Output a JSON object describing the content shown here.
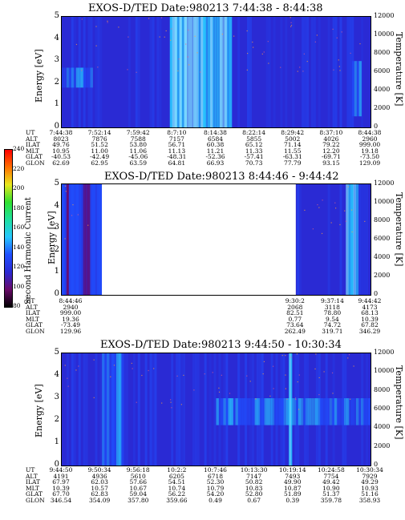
{
  "colors": {
    "background": "#2a2ad4",
    "hot": "#27c7ff",
    "mid": "#2050ff",
    "bright": "#7ad8ff"
  },
  "colorbar": {
    "label": "Second Harmonic Current",
    "ticks": [
      "80",
      "100",
      "120",
      "140",
      "160",
      "180",
      "200",
      "220",
      "240"
    ],
    "stops": [
      "#000000",
      "#6a0a6a",
      "#2a2ad4",
      "#2050ff",
      "#27c7ff",
      "#1fe0a0",
      "#30e030",
      "#e8e81e",
      "#ff7000",
      "#ff0000"
    ]
  },
  "panels": [
    {
      "title": "EXOS-D/TED   Date:980213  7:44:38 - 8:44:38",
      "ylabel": "Energy [eV]",
      "y2label": "Temperature [K]",
      "yticks": [
        "0",
        "1",
        "2",
        "3",
        "4",
        "5"
      ],
      "y2ticks": [
        "0",
        "2000",
        "4000",
        "6000",
        "8000",
        "10000",
        "12000"
      ],
      "row_labels": [
        "UT",
        "ALT",
        "ILAT",
        "MLT",
        "GLAT",
        "GLON"
      ],
      "columns": [
        [
          "7:44:38",
          "8023",
          "49.76",
          "10.95",
          "-40.53",
          "62.69"
        ],
        [
          "7:52:14",
          "7876",
          "51.52",
          "11.00",
          "-42.49",
          "62.95"
        ],
        [
          "7:59:42",
          "7588",
          "53.80",
          "11.06",
          "-45.06",
          "63.59"
        ],
        [
          "8:7:10",
          "7157",
          "56.71",
          "11.13",
          "-48.31",
          "64.81"
        ],
        [
          "8:14:38",
          "6584",
          "60.38",
          "11.21",
          "-52.36",
          "66.93"
        ],
        [
          "8:22:14",
          "5855",
          "65.12",
          "11.33",
          "-57.41",
          "70.73"
        ],
        [
          "8:29:42",
          "5002",
          "71.14",
          "11.55",
          "-63.31",
          "77.79"
        ],
        [
          "8:37:10",
          "4026",
          "79.22",
          "12.20",
          "-69.71",
          "93.15"
        ],
        [
          "8:44:38",
          "2960",
          "999.00",
          "19.18",
          "-73.50",
          "129.09"
        ]
      ],
      "data_gaps": []
    },
    {
      "title": "EXOS-D/TED   Date:980213  8:44:46 - 9:44:42",
      "ylabel": "Energy [eV]",
      "y2label": "Temperature [K]",
      "yticks": [
        "0",
        "1",
        "2",
        "3",
        "4",
        "5"
      ],
      "y2ticks": [
        "0",
        "2000",
        "4000",
        "6000",
        "8000",
        "10000",
        "12000"
      ],
      "row_labels": [
        "UT",
        "ALT",
        "ILAT",
        "MLT",
        "GLAT",
        "GLON"
      ],
      "columns": [
        [
          "8:44:46",
          "2940",
          "999.00",
          "19.36",
          "-73.49",
          "129.96"
        ],
        [
          "9:30:2",
          "2068",
          "82.51",
          "0.77",
          "73.64",
          "262.49"
        ],
        [
          "9:37:14",
          "3118",
          "78.80",
          "9.54",
          "74.72",
          "319.71"
        ],
        [
          "9:44:42",
          "4173",
          "68.13",
          "10.39",
          "67.82",
          "346.29"
        ]
      ],
      "data_gaps": [
        [
          0.13,
          0.758
        ]
      ]
    },
    {
      "title": "EXOS-D/TED   Date:980213  9:44:50 - 10:30:34",
      "ylabel": "Energy [eV]",
      "y2label": "Temperature [K]",
      "yticks": [
        "0",
        "1",
        "2",
        "3",
        "4",
        "5"
      ],
      "y2ticks": [
        "0",
        "2000",
        "4000",
        "6000",
        "8000",
        "10000",
        "12000"
      ],
      "row_labels": [
        "UT",
        "ALT",
        "ILAT",
        "MLT",
        "GLAT",
        "GLON"
      ],
      "columns": [
        [
          "9:44:50",
          "4191",
          "67.97",
          "10.39",
          "67.70",
          "346.54"
        ],
        [
          "9:50:34",
          "4936",
          "62.03",
          "10.57",
          "62.83",
          "354.09"
        ],
        [
          "9:56:18",
          "5610",
          "57.66",
          "10.67",
          "59.04",
          "357.80"
        ],
        [
          "10:2:2",
          "6205",
          "54.51",
          "10.74",
          "56.22",
          "359.66"
        ],
        [
          "10:7:46",
          "6718",
          "52.30",
          "10.79",
          "54.20",
          "0.49"
        ],
        [
          "10:13:30",
          "7147",
          "50.82",
          "10.83",
          "52.80",
          "0.67"
        ],
        [
          "10:19:14",
          "7493",
          "49.90",
          "10.87",
          "51.89",
          "0.39"
        ],
        [
          "10:24:58",
          "7754",
          "49.42",
          "10.90",
          "51.37",
          "359.78"
        ],
        [
          "10:30:34",
          "7929",
          "49.29",
          "10.93",
          "51.16",
          "358.93"
        ]
      ],
      "data_gaps": []
    }
  ],
  "chart_data": [
    {
      "type": "heatmap",
      "title": "EXOS-D/TED   Date:980213  7:44:38 - 8:44:38",
      "xlabel": "UT",
      "ylabel": "Energy [eV]",
      "y2label": "Temperature [K]",
      "ylim": [
        0,
        5
      ],
      "y2lim": [
        0,
        12000
      ],
      "x_ticks": [
        "7:44:38",
        "7:52:14",
        "7:59:42",
        "8:7:10",
        "8:14:38",
        "8:22:14",
        "8:29:42",
        "8:37:10",
        "8:44:38"
      ],
      "colorbar_range": [
        80,
        240
      ],
      "features": [
        {
          "x_frac_range": [
            0.0,
            0.1
          ],
          "energy_range": [
            1.8,
            2.7
          ],
          "level": "enhanced"
        },
        {
          "x_frac_range": [
            0.35,
            0.55
          ],
          "energy_range": [
            0,
            5
          ],
          "level": "bright"
        },
        {
          "x_frac_range": [
            0.94,
            0.97
          ],
          "energy_range": [
            0.5,
            3.0
          ],
          "level": "enhanced"
        }
      ]
    },
    {
      "type": "heatmap",
      "title": "EXOS-D/TED   Date:980213  8:44:46 - 9:44:42",
      "xlabel": "UT",
      "ylabel": "Energy [eV]",
      "y2label": "Temperature [K]",
      "ylim": [
        0,
        5
      ],
      "y2lim": [
        0,
        12000
      ],
      "x_ticks": [
        "8:44:46",
        "9:30:2",
        "9:37:14",
        "9:44:42"
      ],
      "colorbar_range": [
        80,
        240
      ],
      "features": [
        {
          "x_frac_range": [
            0.0,
            0.13
          ],
          "energy_range": [
            0,
            5
          ],
          "level": "noisy"
        },
        {
          "x_frac_range": [
            0.92,
            0.96
          ],
          "energy_range": [
            0,
            5
          ],
          "level": "bright"
        }
      ]
    },
    {
      "type": "heatmap",
      "title": "EXOS-D/TED   Date:980213  9:44:50 - 10:30:34",
      "xlabel": "UT",
      "ylabel": "Energy [eV]",
      "y2label": "Temperature [K]",
      "ylim": [
        0,
        5
      ],
      "y2lim": [
        0,
        12000
      ],
      "x_ticks": [
        "9:44:50",
        "9:50:34",
        "9:56:18",
        "10:2:2",
        "10:7:46",
        "10:13:30",
        "10:19:14",
        "10:24:58",
        "10:30:34"
      ],
      "colorbar_range": [
        80,
        240
      ],
      "features": [
        {
          "x_frac_range": [
            0.13,
            0.2
          ],
          "energy_range": [
            0,
            5
          ],
          "level": "enhanced"
        },
        {
          "x_frac_range": [
            0.5,
            1.0
          ],
          "energy_range": [
            1.8,
            3.0
          ],
          "level": "enhanced"
        },
        {
          "x_frac_range": [
            0.735,
            0.745
          ],
          "energy_range": [
            0,
            5
          ],
          "level": "bright"
        }
      ]
    }
  ]
}
